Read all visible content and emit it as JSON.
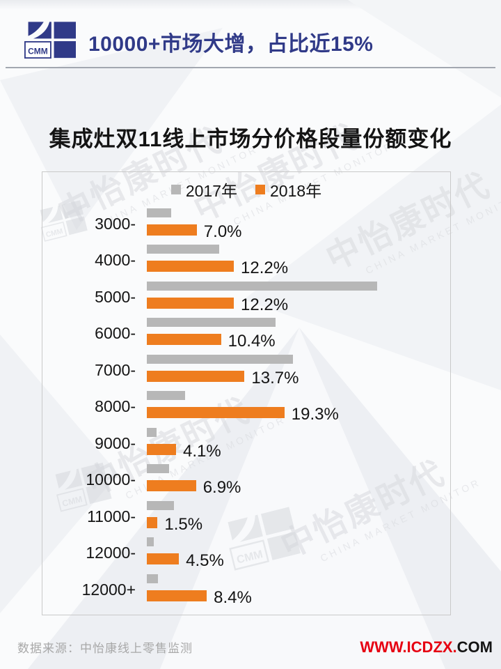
{
  "header": {
    "logo_text": "CMM",
    "title": "10000+市场大增，占比近15%"
  },
  "chart_title": "集成灶双11线上市场分价格段量份额变化",
  "chart_data": {
    "type": "bar",
    "orientation": "horizontal",
    "title": "集成灶双11线上市场分价格段量份额变化",
    "categories": [
      "3000-",
      "4000-",
      "5000-",
      "6000-",
      "7000-",
      "8000-",
      "9000-",
      "10000-",
      "11000-",
      "12000-",
      "12000+"
    ],
    "series": [
      {
        "name": "2017年",
        "color": "#b7b7b7",
        "values": [
          3.4,
          10.1,
          32.3,
          18.0,
          20.5,
          5.4,
          1.4,
          3.1,
          3.8,
          1.0,
          1.6
        ]
      },
      {
        "name": "2018年",
        "color": "#ee7d1f",
        "values": [
          7.0,
          12.2,
          12.2,
          10.4,
          13.7,
          19.3,
          4.1,
          6.9,
          1.5,
          4.5,
          8.4
        ],
        "labels": [
          "7.0%",
          "12.2%",
          "12.2%",
          "10.4%",
          "13.7%",
          "19.3%",
          "4.1%",
          "6.9%",
          "1.5%",
          "4.5%",
          "8.4%"
        ]
      }
    ],
    "value_unit": "%",
    "xlim": [
      0,
      35
    ],
    "legend_position": "top-center",
    "grid": false,
    "axis_visible": false
  },
  "footer": {
    "source": "数据来源：中怡康线上零售监测",
    "website_red": "WWW.ICDZX.",
    "website_dark": "COM"
  },
  "watermark": {
    "cn": "中怡康时代",
    "en": "CHINA MARKET MONITOR",
    "logo_text": "CMM"
  },
  "colors": {
    "navy": "#303a88",
    "orange": "#ee7d1f",
    "gray_bar": "#b7b7b7",
    "red": "#e60012"
  }
}
